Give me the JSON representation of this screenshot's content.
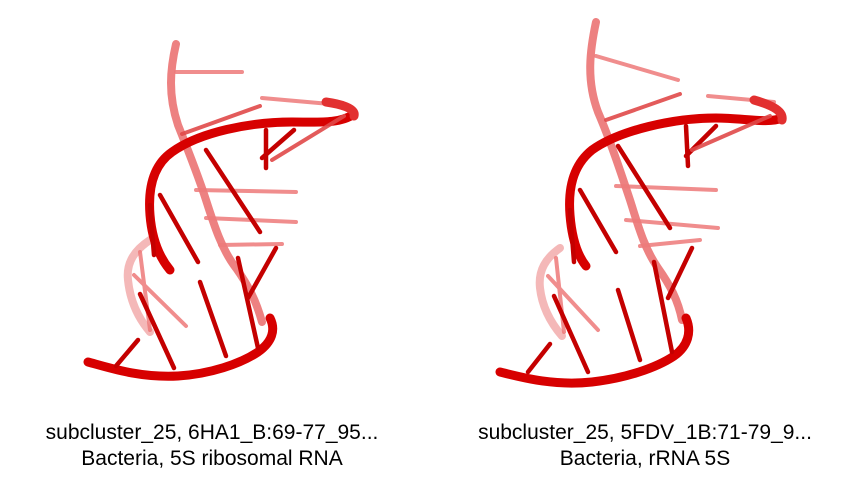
{
  "colors": {
    "backbone": "#d90000",
    "backbone_light": "#e86a6a",
    "base": "#c80000",
    "base_light": "#ee8080",
    "background": "#ffffff"
  },
  "panels": [
    {
      "caption_line1": "subcluster_25, 6HA1_B:69-77_95...",
      "caption_line2": "Bacteria, 5S ribosomal RNA"
    },
    {
      "caption_line1": "subcluster_25, 5FDV_1B:71-79_9...",
      "caption_line2": "Bacteria, rRNA 5S"
    }
  ]
}
